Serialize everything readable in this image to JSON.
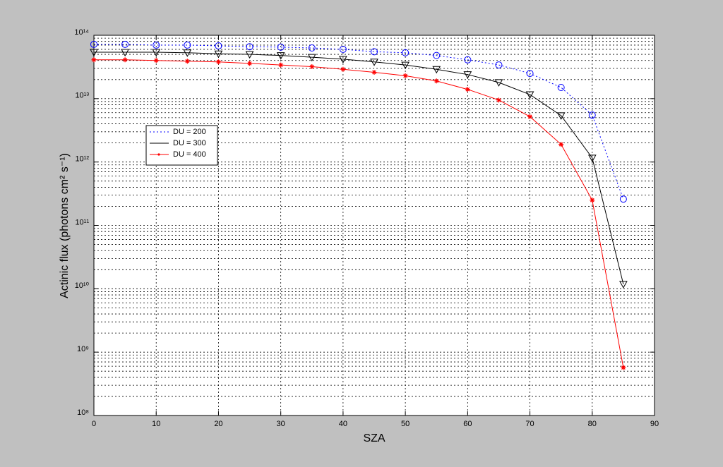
{
  "chart_data": {
    "type": "line",
    "x_label": "SZA",
    "y_label": "Actinic flux (photons cm² s⁻¹)",
    "x": [
      0,
      5,
      10,
      15,
      20,
      25,
      30,
      35,
      40,
      45,
      50,
      55,
      60,
      65,
      70,
      75,
      80,
      85
    ],
    "series": [
      {
        "name": "DU = 200",
        "color": "#0000ff",
        "linestyle": "dotted",
        "marker": "circle",
        "values": [
          72000000000000,
          72000000000000,
          70000000000000,
          70000000000000,
          68000000000000,
          66000000000000,
          65000000000000,
          63000000000000,
          60000000000000,
          55000000000000,
          53000000000000,
          48000000000000,
          41000000000000,
          34000000000000,
          25000000000000,
          15000000000000,
          5500000000000,
          260000000000
        ]
      },
      {
        "name": "DU = 300",
        "color": "#000000",
        "linestyle": "solid",
        "marker": "triangle-down",
        "values": [
          54000000000000,
          54000000000000,
          54000000000000,
          53000000000000,
          51000000000000,
          50000000000000,
          48000000000000,
          45000000000000,
          42000000000000,
          38000000000000,
          34000000000000,
          29000000000000,
          24000000000000,
          18000000000000,
          11600000000000,
          5400000000000,
          1160000000000,
          11800000000
        ]
      },
      {
        "name": "DU = 400",
        "color": "#ff0000",
        "linestyle": "solid",
        "marker": "star",
        "values": [
          41000000000000,
          41000000000000,
          40000000000000,
          39000000000000,
          38000000000000,
          36000000000000,
          34000000000000,
          32000000000000,
          29000000000000,
          26000000000000,
          23000000000000,
          19000000000000,
          14000000000000,
          9500000000000,
          5200000000000,
          1900000000000,
          250000000000,
          570000000
        ]
      }
    ],
    "xlim": [
      0,
      90
    ],
    "xticks": [
      0,
      10,
      20,
      30,
      40,
      50,
      60,
      70,
      80,
      90
    ],
    "ylim": [
      100000000,
      100000000000000
    ],
    "yscale": "log",
    "yticks": [
      {
        "value": 100000000,
        "label": "10⁸"
      },
      {
        "value": 1000000000,
        "label": "10⁹"
      },
      {
        "value": 10000000000,
        "label": "10¹⁰"
      },
      {
        "value": 100000000000,
        "label": "10¹¹"
      },
      {
        "value": 1000000000000,
        "label": "10¹²"
      },
      {
        "value": 10000000000000,
        "label": "10¹³"
      },
      {
        "value": 100000000000000,
        "label": "10¹⁴"
      }
    ],
    "grid": true,
    "minor_grid": true
  }
}
